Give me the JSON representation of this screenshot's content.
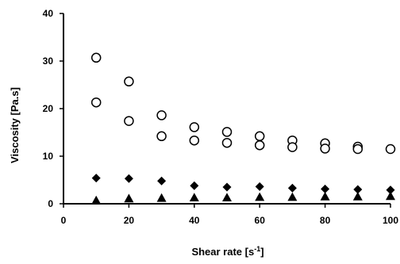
{
  "chart_data": {
    "type": "scatter",
    "title": "",
    "xlabel": "Shear rate [s",
    "xlabel_sup": "-1",
    "xlabel_suffix": "]",
    "ylabel": "Viscosity [Pa.s]",
    "xlim": [
      0,
      100
    ],
    "ylim": [
      0,
      40
    ],
    "xticks": [
      0,
      20,
      40,
      60,
      80,
      100
    ],
    "yticks": [
      0,
      10,
      20,
      30,
      40
    ],
    "grid": false,
    "legend": "none",
    "series": [
      {
        "marker": "circle-open",
        "color": "#000000",
        "points": [
          [
            10,
            30.7
          ],
          [
            20,
            25.7
          ],
          [
            30,
            18.6
          ],
          [
            40,
            16.1
          ],
          [
            50,
            15.1
          ],
          [
            60,
            14.2
          ],
          [
            70,
            13.3
          ],
          [
            80,
            12.7
          ],
          [
            90,
            12.0
          ],
          [
            100,
            11.5
          ]
        ]
      },
      {
        "marker": "circle-open",
        "color": "#000000",
        "points": [
          [
            10,
            21.3
          ],
          [
            20,
            17.4
          ],
          [
            30,
            14.2
          ],
          [
            40,
            13.3
          ],
          [
            50,
            12.8
          ],
          [
            60,
            12.3
          ],
          [
            70,
            11.9
          ],
          [
            80,
            11.6
          ],
          [
            90,
            11.5
          ]
        ]
      },
      {
        "marker": "diamond-filled",
        "color": "#000000",
        "points": [
          [
            10,
            5.4
          ],
          [
            20,
            5.3
          ],
          [
            30,
            4.8
          ],
          [
            40,
            3.8
          ],
          [
            50,
            3.5
          ],
          [
            60,
            3.6
          ],
          [
            70,
            3.3
          ],
          [
            80,
            3.1
          ],
          [
            90,
            3.0
          ],
          [
            100,
            2.9
          ]
        ]
      },
      {
        "marker": "triangle-filled",
        "color": "#000000",
        "points": [
          [
            10,
            0.7
          ],
          [
            20,
            1.1
          ],
          [
            30,
            1.2
          ],
          [
            40,
            1.3
          ],
          [
            50,
            1.3
          ],
          [
            60,
            1.4
          ],
          [
            70,
            1.4
          ],
          [
            80,
            1.5
          ],
          [
            90,
            1.5
          ],
          [
            100,
            1.6
          ]
        ]
      }
    ]
  }
}
